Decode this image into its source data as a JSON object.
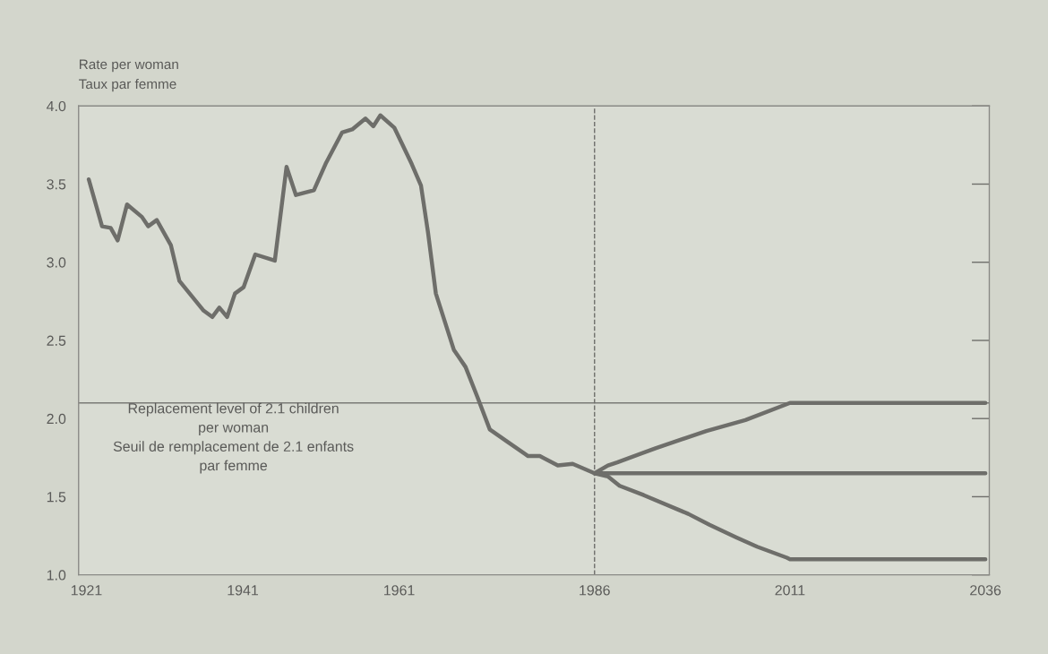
{
  "chart_data": {
    "type": "line",
    "ylabel": "Rate per woman\nTaux par femme",
    "series": [
      {
        "color": "#6e6e6a",
        "x": [
          1921.3,
          1923,
          1924.1,
          1925,
          1926.2,
          1928.1,
          1928.9,
          1930,
          1931.8,
          1932.9,
          1936,
          1937.1,
          1938,
          1939,
          1940,
          1941.1,
          1942.6,
          1945.1,
          1946.6,
          1947.8,
          1950.1,
          1951.6,
          1953.7,
          1955,
          1956.7,
          1957.7,
          1958.6,
          1960.4,
          1962.6,
          1963.8,
          1964.7,
          1965.7,
          1968,
          1969.5,
          1971,
          1972.6,
          1974.9,
          1977.5,
          1979,
          1981.3,
          1983.2,
          1986,
          2036
        ],
        "values": [
          3.53,
          3.23,
          3.22,
          3.14,
          3.37,
          3.29,
          3.23,
          3.27,
          3.11,
          2.88,
          2.69,
          2.65,
          2.71,
          2.65,
          2.8,
          2.84,
          3.05,
          3.01,
          3.61,
          3.43,
          3.46,
          3.63,
          3.83,
          3.85,
          3.92,
          3.87,
          3.94,
          3.86,
          3.63,
          3.49,
          3.19,
          2.8,
          2.44,
          2.33,
          2.14,
          1.93,
          1.85,
          1.76,
          1.76,
          1.7,
          1.71,
          1.65,
          1.65
        ]
      },
      {
        "color": "#6e6e6a",
        "x": [
          1986,
          1987.7,
          1988.9,
          1993.8,
          2000.3,
          2005.3,
          2011,
          2036
        ],
        "values": [
          1.65,
          1.7,
          1.72,
          1.81,
          1.92,
          1.99,
          2.1,
          2.1
        ]
      },
      {
        "color": "#6e6e6a",
        "x": [
          1986,
          1987.7,
          1989.2,
          1992.3,
          1998,
          2000.7,
          2004.1,
          2006.8,
          2010.6,
          2011,
          2036
        ],
        "values": [
          1.65,
          1.63,
          1.57,
          1.51,
          1.39,
          1.32,
          1.24,
          1.18,
          1.11,
          1.1,
          1.1
        ]
      }
    ],
    "xlim": [
      1920,
      2036.5
    ],
    "xticks": [
      1921,
      1941,
      1961,
      1986,
      2011,
      2036
    ],
    "ylim": [
      1.0,
      4.0
    ],
    "yticks": [
      {
        "value": 1.0,
        "label": "1.0"
      },
      {
        "value": 1.5,
        "label": "1.5"
      },
      {
        "value": 2.0,
        "label": "2.0"
      },
      {
        "value": 2.5,
        "label": "2.5"
      },
      {
        "value": 3.0,
        "label": "3.0"
      },
      {
        "value": 3.5,
        "label": "3.5"
      },
      {
        "value": 4.0,
        "label": "4.0"
      }
    ],
    "ref_lines": [
      {
        "axis": "y",
        "value": 2.1,
        "label": "Replacement level of 2.1 children\nper woman\nSeuil de remplacement de 2.1 enfants\npar femme",
        "color": "#7a7a76",
        "line_style": "solid"
      },
      {
        "axis": "x",
        "value": 1986,
        "color": "#6e6e6a",
        "line_style": "dashed"
      }
    ],
    "grid": false,
    "marker": "none",
    "line_style": "solid"
  }
}
